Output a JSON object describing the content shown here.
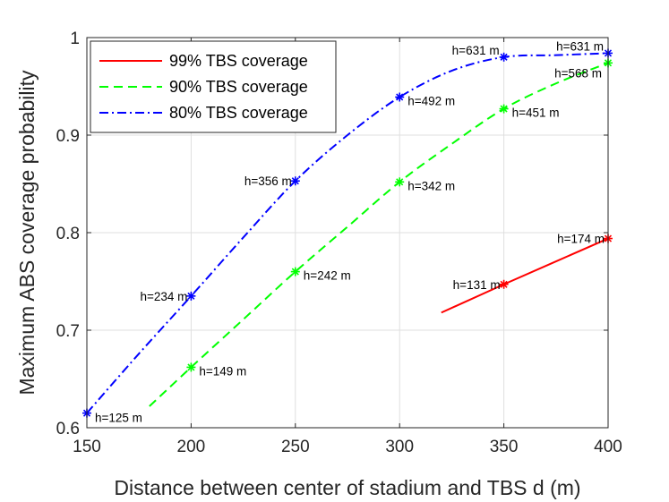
{
  "chart_data": {
    "type": "line",
    "title": "",
    "xlabel": "Distance between center of stadium and TBS d (m)",
    "ylabel": "Maximum ABS coverage probability",
    "xlim": [
      150,
      400
    ],
    "ylim": [
      0.6,
      1.0
    ],
    "xticks": [
      150,
      200,
      250,
      300,
      350,
      400
    ],
    "yticks": [
      0.6,
      0.7,
      0.8,
      0.9,
      1.0
    ],
    "ytick_labels": [
      "0.6",
      "0.7",
      "0.8",
      "0.9",
      "1"
    ],
    "grid": true,
    "legend_position": "top-left",
    "series": [
      {
        "name": "99% TBS coverage",
        "color": "#ff0000",
        "dash": "solid",
        "curve": [
          [
            320,
            0.718
          ],
          [
            350,
            0.747
          ],
          [
            400,
            0.794
          ]
        ],
        "markers": [
          {
            "x": 350,
            "y": 0.747,
            "label": "h=131 m",
            "label_side": "left"
          },
          {
            "x": 400,
            "y": 0.794,
            "label": "h=174 m",
            "label_side": "left"
          }
        ]
      },
      {
        "name": "90% TBS coverage",
        "color": "#00ff00",
        "dash": "dashed",
        "curve": [
          [
            180,
            0.622
          ],
          [
            200,
            0.662
          ],
          [
            225,
            0.711
          ],
          [
            250,
            0.76
          ],
          [
            275,
            0.806
          ],
          [
            300,
            0.852
          ],
          [
            325,
            0.891
          ],
          [
            350,
            0.927
          ],
          [
            375,
            0.953
          ],
          [
            400,
            0.974
          ]
        ],
        "markers": [
          {
            "x": 200,
            "y": 0.662,
            "label": "h=149 m",
            "label_side": "right"
          },
          {
            "x": 250,
            "y": 0.76,
            "label": "h=242 m",
            "label_side": "right"
          },
          {
            "x": 300,
            "y": 0.852,
            "label": "h=342 m",
            "label_side": "right"
          },
          {
            "x": 350,
            "y": 0.927,
            "label": "h=451 m",
            "label_side": "right"
          },
          {
            "x": 400,
            "y": 0.974,
            "label": "h=568 m",
            "label_side": "left-below"
          }
        ]
      },
      {
        "name": "80% TBS coverage",
        "color": "#0000ff",
        "dash": "dashdot",
        "curve": [
          [
            150,
            0.615
          ],
          [
            175,
            0.676
          ],
          [
            200,
            0.735
          ],
          [
            225,
            0.795
          ],
          [
            250,
            0.853
          ],
          [
            275,
            0.9
          ],
          [
            300,
            0.939
          ],
          [
            325,
            0.966
          ],
          [
            350,
            0.98
          ],
          [
            375,
            0.982
          ],
          [
            400,
            0.984
          ]
        ],
        "markers": [
          {
            "x": 150,
            "y": 0.615,
            "label": "h=125 m",
            "label_side": "right-below"
          },
          {
            "x": 200,
            "y": 0.735,
            "label": "h=234 m",
            "label_side": "left"
          },
          {
            "x": 250,
            "y": 0.853,
            "label": "h=356 m",
            "label_side": "left"
          },
          {
            "x": 300,
            "y": 0.939,
            "label": "h=492 m",
            "label_side": "right"
          },
          {
            "x": 350,
            "y": 0.98,
            "label": "h=631 m",
            "label_side": "left-above"
          },
          {
            "x": 400,
            "y": 0.984,
            "label": "h=631 m",
            "label_side": "left-above"
          }
        ]
      }
    ]
  }
}
